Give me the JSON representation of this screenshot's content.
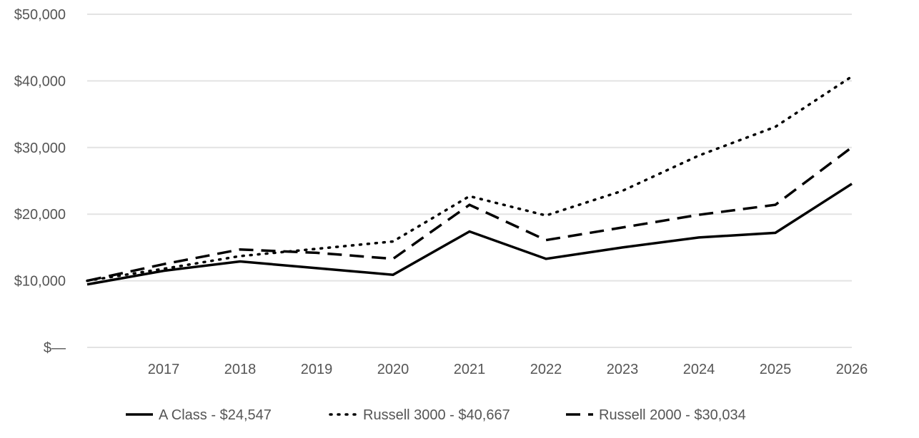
{
  "chart_data": {
    "type": "line",
    "title": "",
    "xlabel": "",
    "ylabel": "",
    "x": [
      2016,
      2017,
      2018,
      2019,
      2020,
      2021,
      2022,
      2023,
      2024,
      2025,
      2026
    ],
    "x_tick_labels": [
      "2017",
      "2018",
      "2019",
      "2020",
      "2021",
      "2022",
      "2023",
      "2024",
      "2025",
      "2026"
    ],
    "y_tick_labels": [
      "$—",
      "$10,000",
      "$20,000",
      "$30,000",
      "$40,000",
      "$50,000"
    ],
    "ylim": [
      0,
      50000
    ],
    "grid": "horizontal",
    "legend_position": "bottom",
    "series": [
      {
        "name": "A Class - $24,547",
        "style": "solid",
        "color": "#000000",
        "values": [
          9450,
          11500,
          12900,
          11900,
          10900,
          17400,
          13300,
          15000,
          16500,
          17200,
          24547
        ]
      },
      {
        "name": "Russell 3000 - $40,667",
        "style": "dotted",
        "color": "#000000",
        "values": [
          10000,
          11800,
          13700,
          14800,
          15900,
          22700,
          19800,
          23500,
          28800,
          33100,
          40667
        ]
      },
      {
        "name": "Russell 2000 - $30,034",
        "style": "dashed",
        "color": "#000000",
        "values": [
          10000,
          12500,
          14700,
          14200,
          13300,
          21400,
          16100,
          18000,
          19900,
          21400,
          30034
        ]
      }
    ]
  }
}
